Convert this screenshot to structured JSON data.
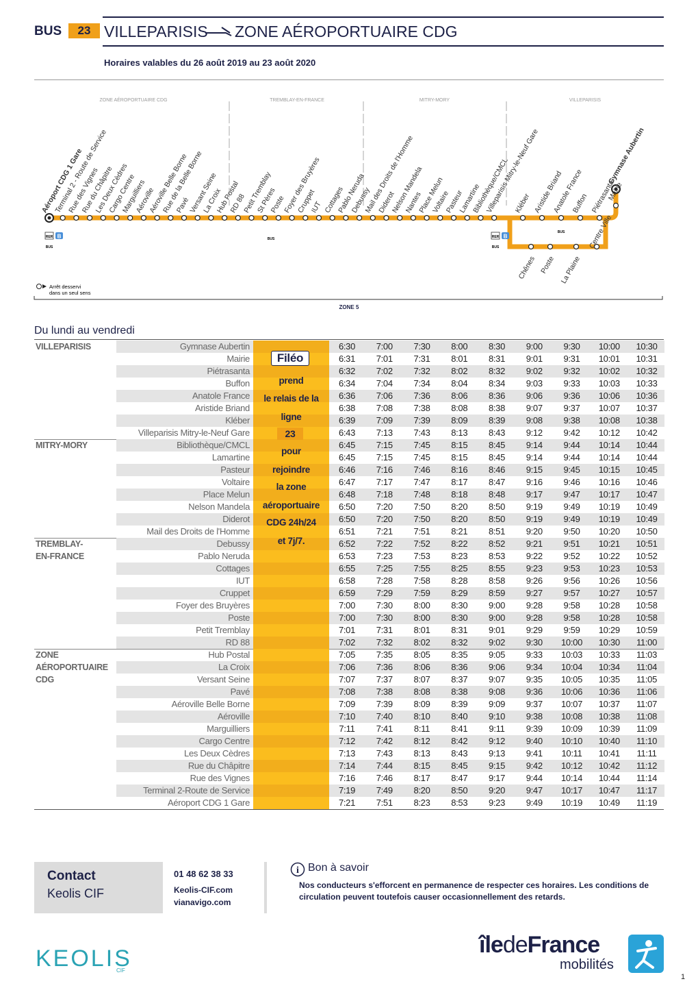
{
  "header": {
    "bus": "BUS",
    "line": "23",
    "from": "VILLEPARISIS",
    "to": "ZONE AÉROPORTUAIRE CDG",
    "validity": "Horaires valables du 26 août 2019 au 23 août 2020"
  },
  "map": {
    "zones": [
      "ZONE AÉROPORTUAIRE CDG",
      "TREMBLAY-EN-FRANCE",
      "MITRY-MORY",
      "VILLEPARISIS"
    ],
    "stops": [
      "Aéroport CDG 1 Gare",
      "Terminal 2 - Route de Service",
      "Rue des Vignes",
      "Rue du Châpitre",
      "Les Deux Cèdres",
      "Cargo Centre",
      "Marguilliers",
      "Aéroville",
      "Aéroville Belle Borne",
      "Rue de la Belle Borne",
      "Pavé",
      "Versant Seine",
      "La Croix",
      "Hub Postal",
      "RD 88",
      "Petit Tremblay",
      "St Pères",
      "Poste",
      "Foyer des Bruyères",
      "Cruppet",
      "IUT",
      "Cottages",
      "Pablo Neruda",
      "Debussy",
      "Mail des Droits de l'Homme",
      "Diderot",
      "Nelson Mandela",
      "Nantes",
      "Place Melun",
      "Voltaire",
      "Pasteur",
      "Lamartine",
      "Bibliothèque/CMCL",
      "Villeparisis Mitry-le-Neuf Gare"
    ],
    "east_stops": [
      "Kléber",
      "Aristide Briand",
      "Anatole France",
      "Buffon",
      "Piétrasanta"
    ],
    "terminus": [
      "Gymnase Aubertin",
      "Mairie"
    ],
    "loop": [
      "Chênes",
      "Poste",
      "La Plaine",
      "Centre Ville"
    ],
    "rer": "RER",
    "rer_line": "B",
    "bus": "BUS",
    "legend": [
      "Arrêt desservi",
      "dans un seul sens"
    ],
    "zone": "ZONE 5"
  },
  "table": {
    "title": "Du lundi au vendredi",
    "fileo": [
      "Filéo",
      "prend",
      "le relais de la",
      "ligne",
      "23",
      "pour",
      "rejoindre",
      "la zone",
      "aéroportuaire",
      "CDG 24h/24",
      "et 7j/7."
    ],
    "groups": [
      {
        "zone": [
          "VILLEPARISIS"
        ],
        "rows": [
          {
            "stop": "Gymnase Aubertin",
            "times": [
              "6:30",
              "7:00",
              "7:30",
              "8:00",
              "8:30",
              "9:00",
              "9:30",
              "10:00",
              "10:30"
            ]
          },
          {
            "stop": "Mairie",
            "times": [
              "6:31",
              "7:01",
              "7:31",
              "8:01",
              "8:31",
              "9:01",
              "9:31",
              "10:01",
              "10:31"
            ]
          },
          {
            "stop": "Piétrasanta",
            "times": [
              "6:32",
              "7:02",
              "7:32",
              "8:02",
              "8:32",
              "9:02",
              "9:32",
              "10:02",
              "10:32"
            ]
          },
          {
            "stop": "Buffon",
            "times": [
              "6:34",
              "7:04",
              "7:34",
              "8:04",
              "8:34",
              "9:03",
              "9:33",
              "10:03",
              "10:33"
            ]
          },
          {
            "stop": "Anatole France",
            "times": [
              "6:36",
              "7:06",
              "7:36",
              "8:06",
              "8:36",
              "9:06",
              "9:36",
              "10:06",
              "10:36"
            ]
          },
          {
            "stop": "Aristide Briand",
            "times": [
              "6:38",
              "7:08",
              "7:38",
              "8:08",
              "8:38",
              "9:07",
              "9:37",
              "10:07",
              "10:37"
            ]
          },
          {
            "stop": "Kléber",
            "times": [
              "6:39",
              "7:09",
              "7:39",
              "8:09",
              "8:39",
              "9:08",
              "9:38",
              "10:08",
              "10:38"
            ]
          },
          {
            "stop": "Villeparisis Mitry-le-Neuf Gare",
            "times": [
              "6:43",
              "7:13",
              "7:43",
              "8:13",
              "8:43",
              "9:12",
              "9:42",
              "10:12",
              "10:42"
            ]
          }
        ]
      },
      {
        "zone": [
          "MITRY-MORY"
        ],
        "rows": [
          {
            "stop": "Bibliothèque/CMCL",
            "times": [
              "6:45",
              "7:15",
              "7:45",
              "8:15",
              "8:45",
              "9:14",
              "9:44",
              "10:14",
              "10:44"
            ]
          },
          {
            "stop": "Lamartine",
            "times": [
              "6:45",
              "7:15",
              "7:45",
              "8:15",
              "8:45",
              "9:14",
              "9:44",
              "10:14",
              "10:44"
            ]
          },
          {
            "stop": "Pasteur",
            "times": [
              "6:46",
              "7:16",
              "7:46",
              "8:16",
              "8:46",
              "9:15",
              "9:45",
              "10:15",
              "10:45"
            ]
          },
          {
            "stop": "Voltaire",
            "times": [
              "6:47",
              "7:17",
              "7:47",
              "8:17",
              "8:47",
              "9:16",
              "9:46",
              "10:16",
              "10:46"
            ]
          },
          {
            "stop": "Place Melun",
            "times": [
              "6:48",
              "7:18",
              "7:48",
              "8:18",
              "8:48",
              "9:17",
              "9:47",
              "10:17",
              "10:47"
            ]
          },
          {
            "stop": "Nelson Mandela",
            "times": [
              "6:50",
              "7:20",
              "7:50",
              "8:20",
              "8:50",
              "9:19",
              "9:49",
              "10:19",
              "10:49"
            ]
          },
          {
            "stop": "Diderot",
            "times": [
              "6:50",
              "7:20",
              "7:50",
              "8:20",
              "8:50",
              "9:19",
              "9:49",
              "10:19",
              "10:49"
            ]
          },
          {
            "stop": "Mail des Droits de l'Homme",
            "times": [
              "6:51",
              "7:21",
              "7:51",
              "8:21",
              "8:51",
              "9:20",
              "9:50",
              "10:20",
              "10:50"
            ]
          }
        ]
      },
      {
        "zone": [
          "TREMBLAY-",
          "EN-FRANCE"
        ],
        "rows": [
          {
            "stop": "Debussy",
            "times": [
              "6:52",
              "7:22",
              "7:52",
              "8:22",
              "8:52",
              "9:21",
              "9:51",
              "10:21",
              "10:51"
            ]
          },
          {
            "stop": "Pablo Neruda",
            "times": [
              "6:53",
              "7:23",
              "7:53",
              "8:23",
              "8:53",
              "9:22",
              "9:52",
              "10:22",
              "10:52"
            ]
          },
          {
            "stop": "Cottages",
            "times": [
              "6:55",
              "7:25",
              "7:55",
              "8:25",
              "8:55",
              "9:23",
              "9:53",
              "10:23",
              "10:53"
            ]
          },
          {
            "stop": "IUT",
            "times": [
              "6:58",
              "7:28",
              "7:58",
              "8:28",
              "8:58",
              "9:26",
              "9:56",
              "10:26",
              "10:56"
            ]
          },
          {
            "stop": "Cruppet",
            "times": [
              "6:59",
              "7:29",
              "7:59",
              "8:29",
              "8:59",
              "9:27",
              "9:57",
              "10:27",
              "10:57"
            ]
          },
          {
            "stop": "Foyer des Bruyères",
            "times": [
              "7:00",
              "7:30",
              "8:00",
              "8:30",
              "9:00",
              "9:28",
              "9:58",
              "10:28",
              "10:58"
            ]
          },
          {
            "stop": "Poste",
            "times": [
              "7:00",
              "7:30",
              "8:00",
              "8:30",
              "9:00",
              "9:28",
              "9:58",
              "10:28",
              "10:58"
            ]
          },
          {
            "stop": "Petit Tremblay",
            "times": [
              "7:01",
              "7:31",
              "8:01",
              "8:31",
              "9:01",
              "9:29",
              "9:59",
              "10:29",
              "10:59"
            ]
          },
          {
            "stop": "RD 88",
            "times": [
              "7:02",
              "7:32",
              "8:02",
              "8:32",
              "9:02",
              "9:30",
              "10:00",
              "10:30",
              "11:00"
            ]
          }
        ]
      },
      {
        "zone": [
          "ZONE",
          "AÉROPORTUAIRE",
          "CDG"
        ],
        "rows": [
          {
            "stop": "Hub Postal",
            "times": [
              "7:05",
              "7:35",
              "8:05",
              "8:35",
              "9:05",
              "9:33",
              "10:03",
              "10:33",
              "11:03"
            ]
          },
          {
            "stop": "La Croix",
            "times": [
              "7:06",
              "7:36",
              "8:06",
              "8:36",
              "9:06",
              "9:34",
              "10:04",
              "10:34",
              "11:04"
            ]
          },
          {
            "stop": "Versant Seine",
            "times": [
              "7:07",
              "7:37",
              "8:07",
              "8:37",
              "9:07",
              "9:35",
              "10:05",
              "10:35",
              "11:05"
            ]
          },
          {
            "stop": "Pavé",
            "times": [
              "7:08",
              "7:38",
              "8:08",
              "8:38",
              "9:08",
              "9:36",
              "10:06",
              "10:36",
              "11:06"
            ]
          },
          {
            "stop": "Aéroville Belle Borne",
            "times": [
              "7:09",
              "7:39",
              "8:09",
              "8:39",
              "9:09",
              "9:37",
              "10:07",
              "10:37",
              "11:07"
            ]
          },
          {
            "stop": "Aéroville",
            "times": [
              "7:10",
              "7:40",
              "8:10",
              "8:40",
              "9:10",
              "9:38",
              "10:08",
              "10:38",
              "11:08"
            ]
          },
          {
            "stop": "Marguilliers",
            "times": [
              "7:11",
              "7:41",
              "8:11",
              "8:41",
              "9:11",
              "9:39",
              "10:09",
              "10:39",
              "11:09"
            ]
          },
          {
            "stop": "Cargo Centre",
            "times": [
              "7:12",
              "7:42",
              "8:12",
              "8:42",
              "9:12",
              "9:40",
              "10:10",
              "10:40",
              "11:10"
            ]
          },
          {
            "stop": "Les Deux Cèdres",
            "times": [
              "7:13",
              "7:43",
              "8:13",
              "8:43",
              "9:13",
              "9:41",
              "10:11",
              "10:41",
              "11:11"
            ]
          },
          {
            "stop": "Rue du Châpitre",
            "times": [
              "7:14",
              "7:44",
              "8:15",
              "8:45",
              "9:15",
              "9:42",
              "10:12",
              "10:42",
              "11:12"
            ]
          },
          {
            "stop": "Rue des Vignes",
            "times": [
              "7:16",
              "7:46",
              "8:17",
              "8:47",
              "9:17",
              "9:44",
              "10:14",
              "10:44",
              "11:14"
            ]
          },
          {
            "stop": "Terminal 2-Route de Service",
            "times": [
              "7:19",
              "7:49",
              "8:20",
              "8:50",
              "9:20",
              "9:47",
              "10:17",
              "10:47",
              "11:17"
            ]
          },
          {
            "stop": "Aéroport CDG 1 Gare",
            "times": [
              "7:21",
              "7:51",
              "8:23",
              "8:53",
              "9:23",
              "9:49",
              "10:19",
              "10:49",
              "11:19"
            ]
          }
        ]
      }
    ]
  },
  "contact": {
    "title": "Contact",
    "company": "Keolis CIF",
    "phone": "01 48 62 38 33",
    "site": "Keolis-CIF.com",
    "site2": "vianavigo.com"
  },
  "info": {
    "title": "Bon à savoir",
    "text": "Nos conducteurs s'efforcent en permanence de respecter ces horaires. Les conditions de circulation peuvent toutefois causer occasionnellement des retards."
  },
  "logos": {
    "keolis": "KEOLIS",
    "cif": "CIF",
    "idf_ile": "île",
    "idf_de": "de",
    "idf_france": "France",
    "idf_mob": "mobilités"
  },
  "page": "1"
}
